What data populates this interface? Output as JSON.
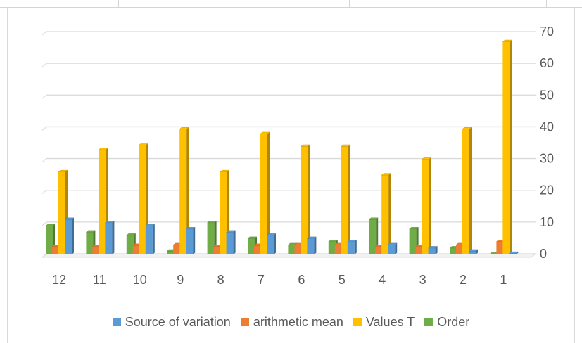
{
  "chart_data": {
    "type": "bar",
    "style": "3d-clustered-column",
    "categories": [
      "12",
      "11",
      "10",
      "9",
      "8",
      "7",
      "6",
      "5",
      "4",
      "3",
      "2",
      "1"
    ],
    "series": [
      {
        "name": "Order",
        "color": "#70ad47",
        "values": [
          9,
          7,
          6,
          1,
          10,
          5,
          3,
          4,
          11,
          8,
          2,
          0
        ]
      },
      {
        "name": "arithmetic mean",
        "color": "#ed7d31",
        "values": [
          2.5,
          2.5,
          2.8,
          3,
          2.5,
          2.8,
          3,
          3,
          2.5,
          2.5,
          3,
          4
        ]
      },
      {
        "name": "Values T",
        "color": "#ffc000",
        "values": [
          26,
          33,
          34.5,
          39.5,
          26,
          38,
          34,
          34,
          25,
          30,
          39.5,
          67
        ]
      },
      {
        "name": "Source of variation",
        "color": "#5b9bd5",
        "values": [
          11,
          10,
          9,
          8,
          7,
          6,
          5,
          4,
          3,
          2,
          1,
          0.3
        ]
      }
    ],
    "y_axis": {
      "position": "right",
      "ylim": [
        0,
        70
      ],
      "ticks": [
        0,
        10,
        20,
        30,
        40,
        50,
        60,
        70
      ]
    },
    "grid": true,
    "legend": {
      "position": "bottom",
      "order": [
        "Source of variation",
        "arithmetic mean",
        "Values T",
        "Order"
      ]
    }
  }
}
